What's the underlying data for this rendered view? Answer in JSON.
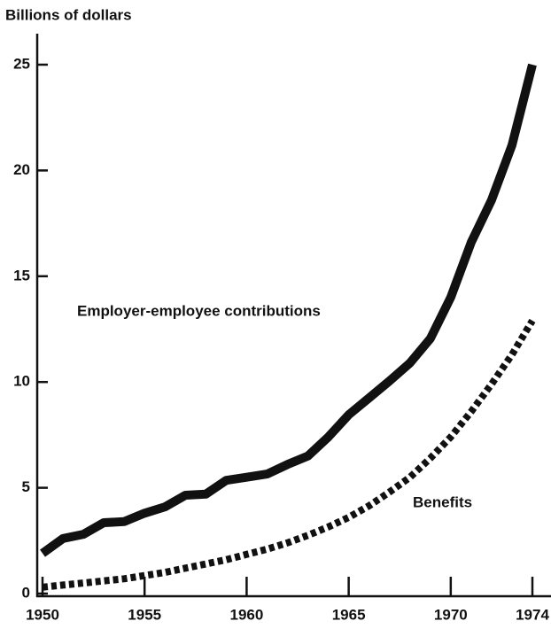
{
  "chart_data": {
    "type": "line",
    "y_label": "Billions of dollars",
    "x": [
      1950,
      1951,
      1952,
      1953,
      1954,
      1955,
      1956,
      1957,
      1958,
      1959,
      1960,
      1961,
      1962,
      1963,
      1964,
      1965,
      1966,
      1967,
      1968,
      1969,
      1970,
      1971,
      1972,
      1973,
      1974
    ],
    "series": [
      {
        "name": "Employer-employee contributions",
        "color": "#111111",
        "line_style": "solid",
        "values": [
          1.9,
          2.6,
          2.8,
          3.35,
          3.4,
          3.8,
          4.1,
          4.65,
          4.7,
          5.35,
          5.5,
          5.65,
          6.1,
          6.5,
          7.4,
          8.45,
          9.25,
          10.05,
          10.9,
          12.05,
          14.0,
          16.6,
          18.6,
          21.2,
          25.0
        ]
      },
      {
        "name": "Benefits",
        "color": "#111111",
        "line_style": "dashed",
        "values": [
          0.3,
          0.4,
          0.5,
          0.6,
          0.7,
          0.85,
          1.0,
          1.2,
          1.4,
          1.6,
          1.85,
          2.1,
          2.4,
          2.75,
          3.15,
          3.6,
          4.15,
          4.8,
          5.5,
          6.4,
          7.4,
          8.6,
          9.9,
          11.3,
          12.9
        ]
      }
    ],
    "xlim": [
      1950,
      1974
    ],
    "xticks": [
      1950,
      1955,
      1960,
      1965,
      1970,
      1974
    ],
    "ylim": [
      0,
      26.5
    ],
    "yticks": [
      0,
      5,
      10,
      15,
      20,
      25
    ]
  }
}
